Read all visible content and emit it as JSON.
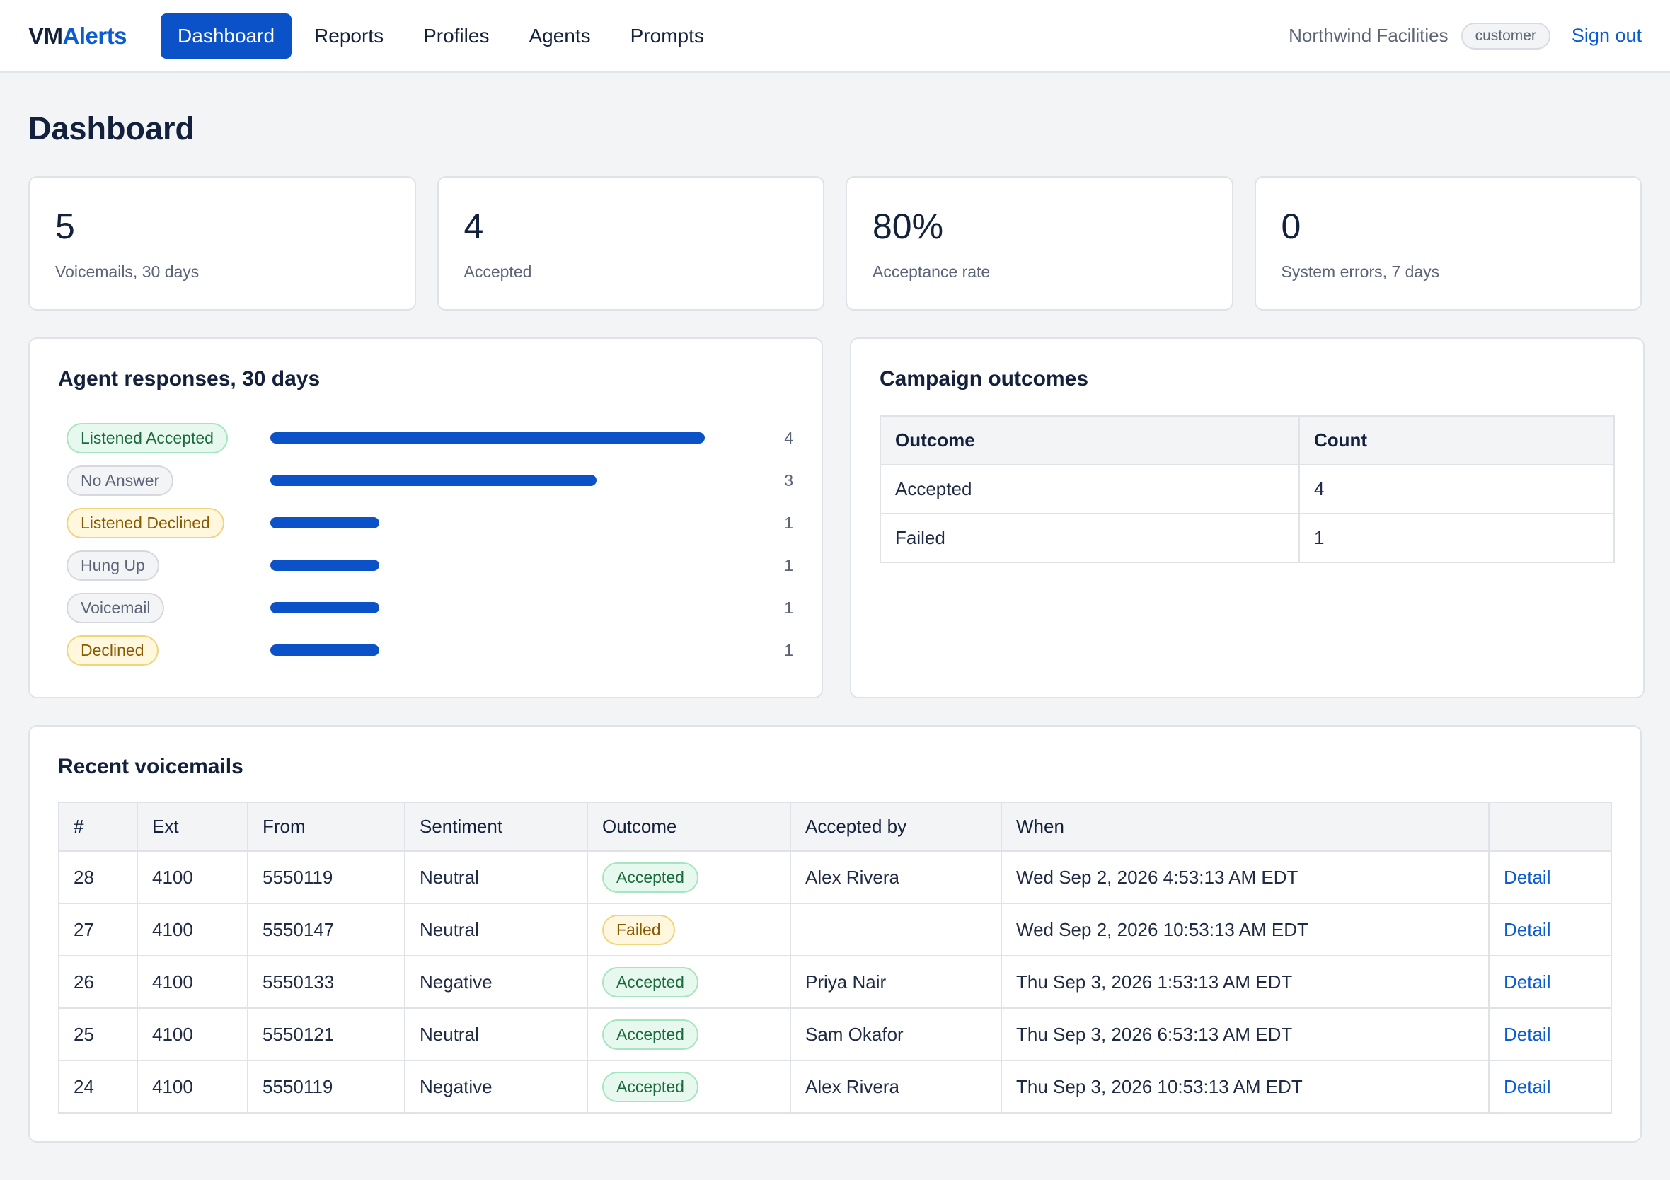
{
  "brand": {
    "part1": "VM",
    "part2": "Alerts"
  },
  "nav": [
    {
      "label": "Dashboard",
      "active": true
    },
    {
      "label": "Reports",
      "active": false
    },
    {
      "label": "Profiles",
      "active": false
    },
    {
      "label": "Agents",
      "active": false
    },
    {
      "label": "Prompts",
      "active": false
    }
  ],
  "user": {
    "org": "Northwind Facilities",
    "role": "customer",
    "signout": "Sign out"
  },
  "page_title": "Dashboard",
  "stats": [
    {
      "value": "5",
      "label": "Voicemails, 30 days"
    },
    {
      "value": "4",
      "label": "Accepted"
    },
    {
      "value": "80%",
      "label": "Acceptance rate"
    },
    {
      "value": "0",
      "label": "System errors, 7 days"
    }
  ],
  "agent_responses": {
    "title": "Agent responses, 30 days",
    "max": 4,
    "items": [
      {
        "label": "Listened Accepted",
        "count": "4",
        "style": "green"
      },
      {
        "label": "No Answer",
        "count": "3",
        "style": "gray"
      },
      {
        "label": "Listened Declined",
        "count": "1",
        "style": "amber"
      },
      {
        "label": "Hung Up",
        "count": "1",
        "style": "gray"
      },
      {
        "label": "Voicemail",
        "count": "1",
        "style": "gray"
      },
      {
        "label": "Declined",
        "count": "1",
        "style": "amber"
      }
    ]
  },
  "campaign_outcomes": {
    "title": "Campaign outcomes",
    "headers": [
      "Outcome",
      "Count"
    ],
    "rows": [
      [
        "Accepted",
        "4"
      ],
      [
        "Failed",
        "1"
      ]
    ]
  },
  "recent": {
    "title": "Recent voicemails",
    "headers": [
      "#",
      "Ext",
      "From",
      "Sentiment",
      "Outcome",
      "Accepted by",
      "When",
      ""
    ],
    "detail_label": "Detail",
    "rows": [
      {
        "num": "28",
        "ext": "4100",
        "from": "5550119",
        "sentiment": "Neutral",
        "outcome": "Accepted",
        "outcome_style": "green",
        "accepted_by": "Alex Rivera",
        "when": "Wed Sep 2, 2026 4:53:13 AM EDT"
      },
      {
        "num": "27",
        "ext": "4100",
        "from": "5550147",
        "sentiment": "Neutral",
        "outcome": "Failed",
        "outcome_style": "amber",
        "accepted_by": "",
        "when": "Wed Sep 2, 2026 10:53:13 AM EDT"
      },
      {
        "num": "26",
        "ext": "4100",
        "from": "5550133",
        "sentiment": "Negative",
        "outcome": "Accepted",
        "outcome_style": "green",
        "accepted_by": "Priya Nair",
        "when": "Thu Sep 3, 2026 1:53:13 AM EDT"
      },
      {
        "num": "25",
        "ext": "4100",
        "from": "5550121",
        "sentiment": "Neutral",
        "outcome": "Accepted",
        "outcome_style": "green",
        "accepted_by": "Sam Okafor",
        "when": "Thu Sep 3, 2026 6:53:13 AM EDT"
      },
      {
        "num": "24",
        "ext": "4100",
        "from": "5550119",
        "sentiment": "Negative",
        "outcome": "Accepted",
        "outcome_style": "green",
        "accepted_by": "Alex Rivera",
        "when": "Thu Sep 3, 2026 10:53:13 AM EDT"
      }
    ]
  }
}
